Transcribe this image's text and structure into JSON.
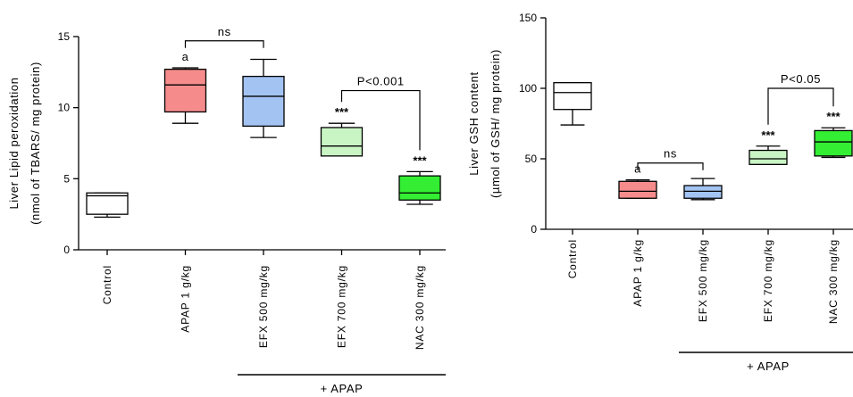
{
  "chart_data": [
    {
      "type": "box",
      "ylabel_line1": "Liver Lipid peroxidation",
      "ylabel_line2": "(nmol of TBARS/ mg protein)",
      "ylim": [
        0,
        15
      ],
      "yticks": [
        "0",
        "5",
        "10",
        "15"
      ],
      "categories": [
        "Control",
        "APAP 1 g/kg",
        "EFX 500 mg/kg",
        "EFX 700 mg/kg",
        "NAC 300 mg/kg"
      ],
      "boxes": [
        {
          "min": 2.3,
          "q1": 2.5,
          "median": 3.8,
          "q3": 4.0,
          "max": 4.0,
          "color": "#ffffff",
          "label": ""
        },
        {
          "min": 8.9,
          "q1": 9.7,
          "median": 11.6,
          "q3": 12.7,
          "max": 12.8,
          "color": "#f58b8b",
          "label": "a"
        },
        {
          "min": 7.9,
          "q1": 8.7,
          "median": 10.8,
          "q3": 12.2,
          "max": 13.4,
          "color": "#a3c4f3",
          "label": ""
        },
        {
          "min": 6.6,
          "q1": 6.6,
          "median": 7.3,
          "q3": 8.6,
          "max": 8.9,
          "color": "#c9f5c4",
          "label": "***"
        },
        {
          "min": 3.2,
          "q1": 3.5,
          "median": 4.0,
          "q3": 5.2,
          "max": 5.5,
          "color": "#33ee33",
          "label": "***"
        }
      ],
      "comparisons": [
        {
          "from": 1,
          "to": 2,
          "label": "ns",
          "at": 14.7
        },
        {
          "from": 3,
          "to": 4,
          "label": "P<0.001",
          "at": 11.2
        }
      ],
      "group_label": "+ APAP"
    },
    {
      "type": "box",
      "ylabel_line1": "Liver GSH content",
      "ylabel_line2": "(µmol of GSH/ mg protein)",
      "ylim": [
        0,
        150
      ],
      "yticks": [
        "0",
        "50",
        "100",
        "150"
      ],
      "categories": [
        "Control",
        "APAP 1 g/kg",
        "EFX 500 mg/kg",
        "EFX 700 mg/kg",
        "NAC 300 mg/kg"
      ],
      "boxes": [
        {
          "min": 74,
          "q1": 85,
          "median": 97,
          "q3": 104,
          "max": 104,
          "color": "#ffffff",
          "label": ""
        },
        {
          "min": 22,
          "q1": 22,
          "median": 27,
          "q3": 34,
          "max": 35,
          "color": "#f58b8b",
          "label": "a"
        },
        {
          "min": 21,
          "q1": 22,
          "median": 27,
          "q3": 31,
          "max": 36,
          "color": "#a3c4f3",
          "label": ""
        },
        {
          "min": 46,
          "q1": 46,
          "median": 50,
          "q3": 56,
          "max": 59,
          "color": "#c9f5c4",
          "label": "***"
        },
        {
          "min": 51,
          "q1": 52,
          "median": 62,
          "q3": 70,
          "max": 72,
          "color": "#33ee33",
          "label": "***"
        }
      ],
      "comparisons": [
        {
          "from": 1,
          "to": 2,
          "label": "ns",
          "at": 47
        },
        {
          "from": 3,
          "to": 4,
          "label": "P<0.05",
          "at": 100
        }
      ],
      "group_label": "+ APAP"
    }
  ]
}
